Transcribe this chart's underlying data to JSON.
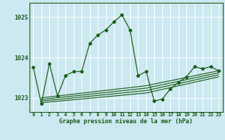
{
  "title": "Graphe pression niveau de la mer (hPa)",
  "bg_color": "#cce8f0",
  "grid_color": "#b8d8e8",
  "line_color": "#1a5c1a",
  "xlim": [
    -0.5,
    23.5
  ],
  "ylim": [
    1022.65,
    1025.35
  ],
  "yticks": [
    1023,
    1024,
    1025
  ],
  "xtick_labels": [
    "0",
    "1",
    "2",
    "3",
    "4",
    "5",
    "6",
    "7",
    "8",
    "9",
    "10",
    "11",
    "12",
    "13",
    "14",
    "15",
    "16",
    "17",
    "18",
    "19",
    "20",
    "21",
    "22",
    "23"
  ],
  "series": [
    [
      0,
      1023.75
    ],
    [
      1,
      1022.85
    ],
    [
      2,
      1023.85
    ],
    [
      3,
      1023.05
    ],
    [
      4,
      1023.55
    ],
    [
      5,
      1023.65
    ],
    [
      6,
      1023.65
    ],
    [
      7,
      1024.35
    ],
    [
      8,
      1024.55
    ],
    [
      9,
      1024.68
    ],
    [
      10,
      1024.88
    ],
    [
      11,
      1025.05
    ],
    [
      12,
      1024.68
    ],
    [
      13,
      1023.55
    ],
    [
      14,
      1023.65
    ],
    [
      15,
      1022.92
    ],
    [
      16,
      1022.97
    ],
    [
      17,
      1023.22
    ],
    [
      18,
      1023.38
    ],
    [
      19,
      1023.52
    ],
    [
      20,
      1023.77
    ],
    [
      21,
      1023.72
    ],
    [
      22,
      1023.77
    ],
    [
      23,
      1023.67
    ]
  ],
  "flat_lines": [
    [
      1,
      1022.88,
      14,
      1023.12,
      23,
      1023.52
    ],
    [
      1,
      1022.92,
      14,
      1023.18,
      23,
      1023.57
    ],
    [
      1,
      1022.96,
      14,
      1023.24,
      23,
      1023.62
    ],
    [
      1,
      1023.0,
      14,
      1023.3,
      23,
      1023.67
    ]
  ]
}
